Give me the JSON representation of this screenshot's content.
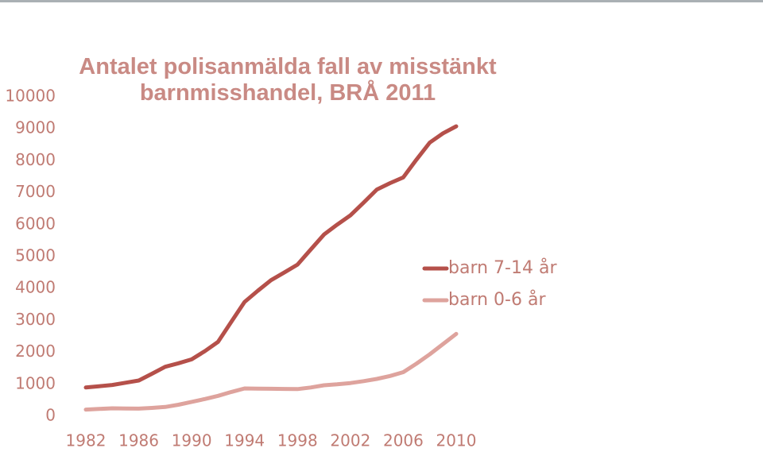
{
  "chart_data": {
    "type": "line",
    "title": "Antalet polisanmälda fall av misstänkt barnmisshandel, BRÅ 2011",
    "xlabel": "",
    "ylabel": "",
    "ylim": [
      0,
      10000
    ],
    "yticks": [
      "0",
      "1000",
      "2000",
      "3000",
      "4000",
      "5000",
      "6000",
      "7000",
      "8000",
      "9000",
      "10000"
    ],
    "xticks": [
      "1982",
      "1986",
      "1990",
      "1994",
      "1998",
      "2002",
      "2006",
      "2010"
    ],
    "x": [
      1982,
      1983,
      1984,
      1985,
      1986,
      1987,
      1988,
      1989,
      1990,
      1991,
      1992,
      1993,
      1994,
      1995,
      1996,
      1997,
      1998,
      1999,
      2000,
      2001,
      2002,
      2003,
      2004,
      2005,
      2006,
      2007,
      2008,
      2009,
      2010
    ],
    "grid": false,
    "legend_position": "right",
    "series": [
      {
        "name": "barn 7-14 år",
        "color": "#b5504a",
        "values": [
          900,
          940,
          980,
          1050,
          1120,
          1330,
          1550,
          1660,
          1780,
          2040,
          2330,
          2960,
          3580,
          3930,
          4260,
          4500,
          4750,
          5220,
          5690,
          6000,
          6290,
          6690,
          7100,
          7300,
          7480,
          8040,
          8570,
          8860,
          9080
        ]
      },
      {
        "name": "barn 0-6 år",
        "color": "#dea39d",
        "values": [
          210,
          230,
          250,
          245,
          240,
          260,
          290,
          360,
          450,
          540,
          640,
          760,
          870,
          865,
          860,
          855,
          850,
          900,
          970,
          1000,
          1040,
          1100,
          1170,
          1260,
          1380,
          1650,
          1940,
          2260,
          2580
        ]
      }
    ]
  }
}
